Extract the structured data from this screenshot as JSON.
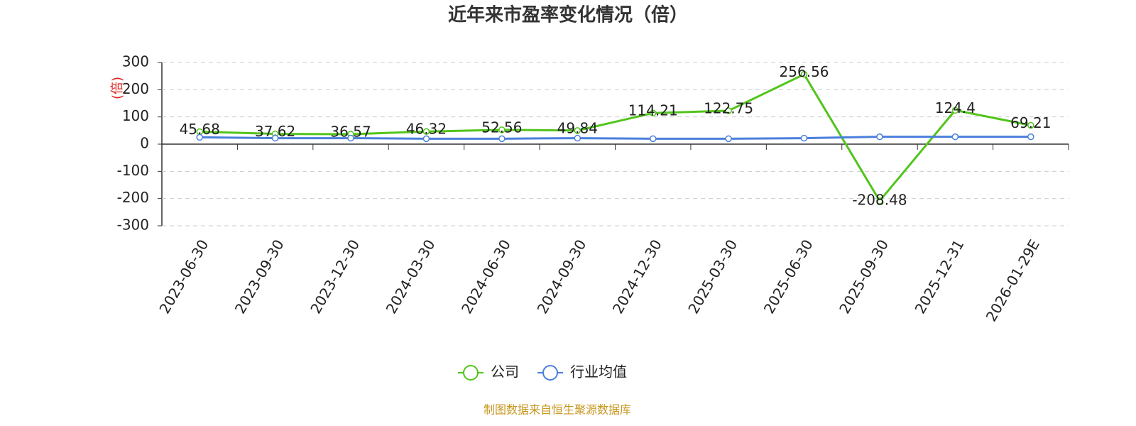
{
  "chart_data": {
    "type": "line",
    "title": "近年来市盈率变化情况（倍）",
    "y_label": "(倍)",
    "categories": [
      "2023-06-30",
      "2023-09-30",
      "2023-12-30",
      "2024-03-30",
      "2024-06-30",
      "2024-09-30",
      "2024-12-30",
      "2025-03-30",
      "2025-06-30",
      "2025-09-30",
      "2025-12-31",
      "2026-01-29E"
    ],
    "series": [
      {
        "name": "公司",
        "color": "#52c41a",
        "values": [
          45.68,
          37.62,
          36.57,
          46.32,
          52.56,
          49.84,
          114.21,
          122.75,
          256.56,
          -208.48,
          124.4,
          69.21
        ],
        "labels": true
      },
      {
        "name": "行业均值",
        "color": "#4a7fdc",
        "values": [
          25,
          22,
          22,
          20,
          20,
          22,
          20,
          20,
          22,
          27,
          27,
          27
        ],
        "labels": false
      }
    ],
    "ylim": [
      -300,
      300
    ],
    "yticks": [
      -300,
      -200,
      -100,
      0,
      100,
      200,
      300
    ],
    "grid": true,
    "source": "制图数据来自恒生聚源数据库"
  }
}
